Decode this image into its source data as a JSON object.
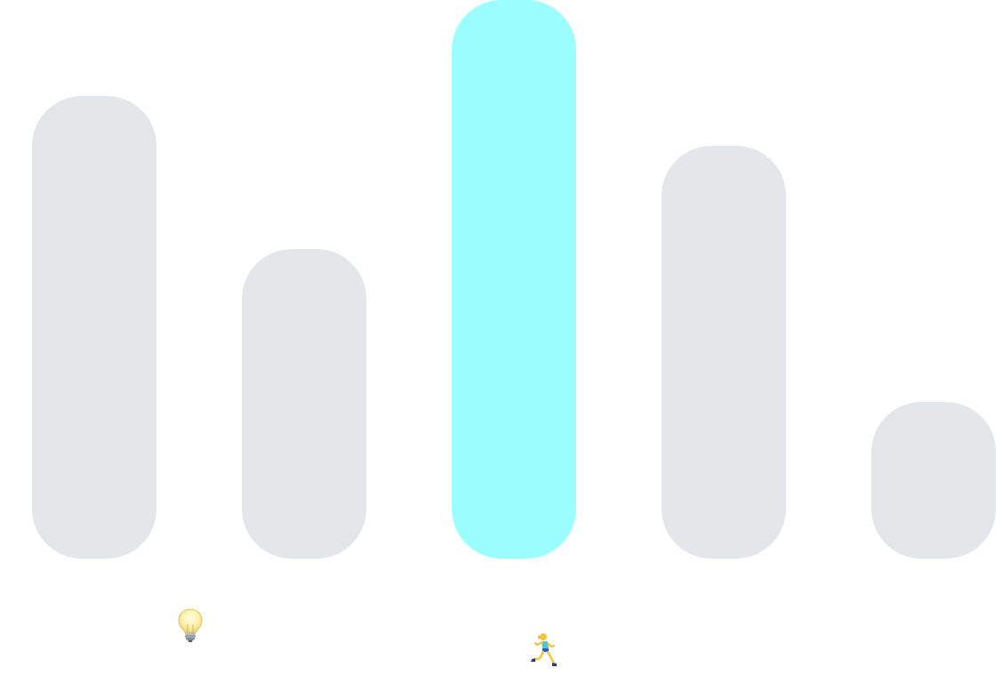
{
  "chart_data": {
    "type": "bar",
    "values": [
      520,
      348,
      628,
      464,
      176
    ],
    "highlight_index": 2,
    "ylim": [
      0,
      628
    ],
    "grid": false,
    "colors": {
      "bar": "#e4e6e9",
      "highlight": "#9cffff"
    }
  },
  "icons": {
    "bulb": "light-bulb-icon",
    "runner": "running-woman-icon"
  }
}
